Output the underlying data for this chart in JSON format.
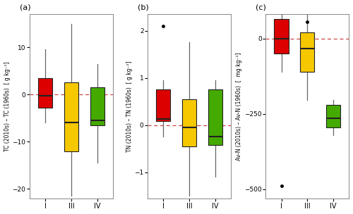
{
  "panels": [
    {
      "label": "(a)",
      "ylabel": "TC (2010s) – TC (1960s)  [ g kg⁻¹]",
      "ylim": [
        -22,
        17
      ],
      "yticks": [
        -20,
        -10,
        0,
        10
      ],
      "categories": [
        "I",
        "III",
        "IV"
      ],
      "colors": [
        "#dd0000",
        "#f5c800",
        "#44aa00"
      ],
      "boxes": [
        {
          "q1": -2.8,
          "median": -0.3,
          "q3": 3.5,
          "whisker_low": -6.0,
          "whisker_high": 9.5
        },
        {
          "q1": -12.0,
          "median": -6.0,
          "q3": 2.5,
          "whisker_low": -21.5,
          "whisker_high": 15.0
        },
        {
          "q1": -6.5,
          "median": -5.5,
          "q3": 1.5,
          "whisker_low": -14.5,
          "whisker_high": 6.5
        }
      ],
      "outliers": []
    },
    {
      "label": "(b)",
      "ylabel": "TN (2010s) – TN (1960s)  [ g kg⁻¹]",
      "ylim": [
        -1.55,
        2.35
      ],
      "yticks": [
        -1,
        0,
        1,
        2
      ],
      "categories": [
        "I",
        "III",
        "IV"
      ],
      "colors": [
        "#dd0000",
        "#f5c800",
        "#44aa00"
      ],
      "boxes": [
        {
          "q1": 0.08,
          "median": 0.13,
          "q3": 0.75,
          "whisker_low": -0.25,
          "whisker_high": 0.95
        },
        {
          "q1": -0.45,
          "median": -0.05,
          "q3": 0.55,
          "whisker_low": -1.5,
          "whisker_high": 1.75
        },
        {
          "q1": -0.42,
          "median": -0.25,
          "q3": 0.75,
          "whisker_low": -1.1,
          "whisker_high": 0.95
        }
      ],
      "outliers": [
        {
          "category_idx": 0,
          "value": 2.1
        }
      ]
    },
    {
      "label": "(c)",
      "ylabel": "Av-N (2010s) – Av-N (1960s)  [  mg kg⁻¹]",
      "ylim": [
        -530,
        80
      ],
      "yticks": [
        -500,
        -250,
        0
      ],
      "categories": [
        "I",
        "III",
        "IV"
      ],
      "colors": [
        "#dd0000",
        "#f5c800",
        "#44aa00"
      ],
      "boxes": [
        {
          "q1": -50,
          "median": 0,
          "q3": 65,
          "whisker_low": -110,
          "whisker_high": 95
        },
        {
          "q1": -110,
          "median": -35,
          "q3": 20,
          "whisker_low": -205,
          "whisker_high": 85
        },
        {
          "q1": -295,
          "median": -265,
          "q3": -220,
          "whisker_low": -320,
          "whisker_high": -205
        }
      ],
      "outliers": [
        {
          "category_idx": 0,
          "value": -490
        },
        {
          "category_idx": 1,
          "value": 55
        }
      ]
    }
  ],
  "box_width": 0.55,
  "linecolor": "#222222",
  "whisker_color": "#666666",
  "dashed_line_color": "#cc4444",
  "dashed_line_style": "--",
  "background_color": "#ffffff",
  "panel_bg": "#ffffff"
}
